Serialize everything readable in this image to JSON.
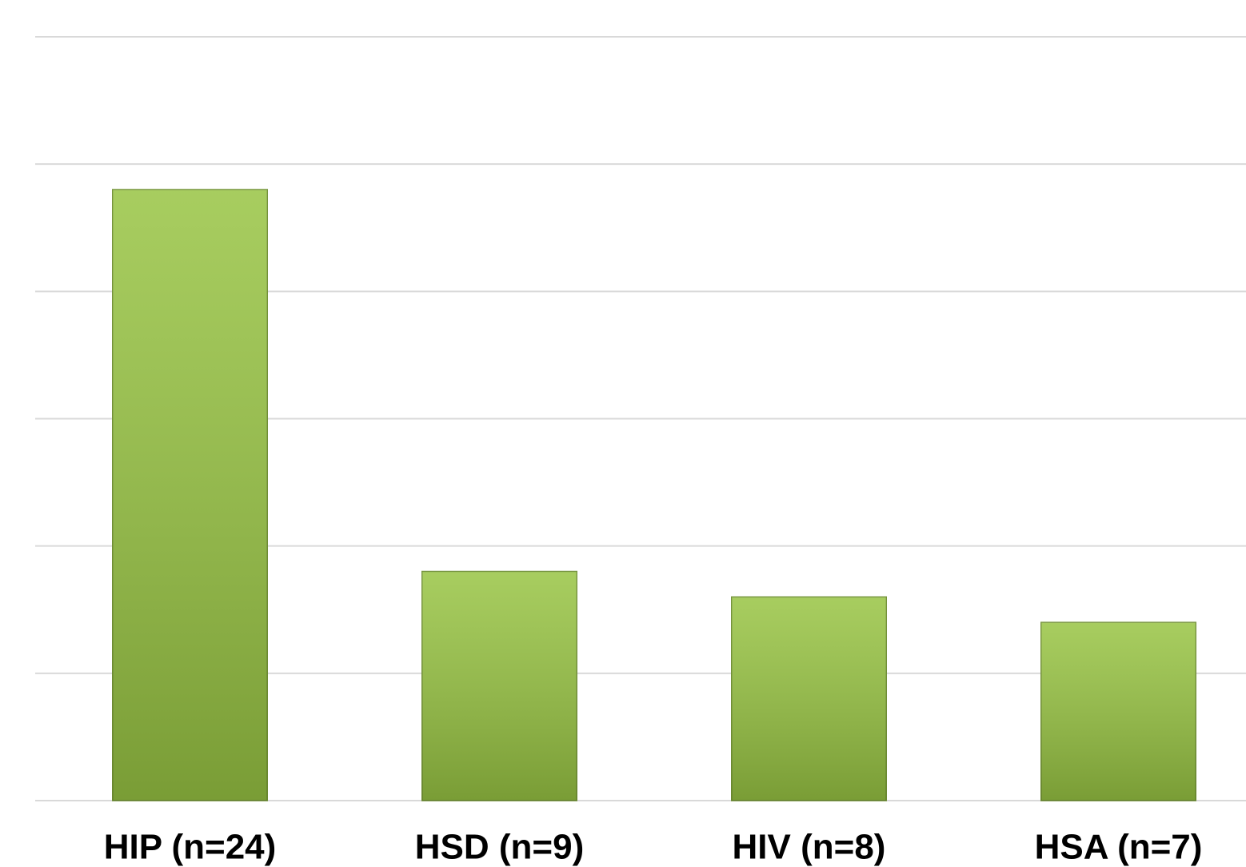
{
  "chart_data": {
    "type": "bar",
    "categories": [
      "HIP (n=24)",
      "HSD (n=9)",
      "HIV (n=8)",
      "HSA (n=7)"
    ],
    "values": [
      24,
      9,
      8,
      7
    ],
    "color": "#98c443",
    "ylim": [
      0,
      30
    ],
    "yticks": [
      0,
      5,
      10,
      15,
      20,
      25,
      30
    ],
    "grid": true
  }
}
